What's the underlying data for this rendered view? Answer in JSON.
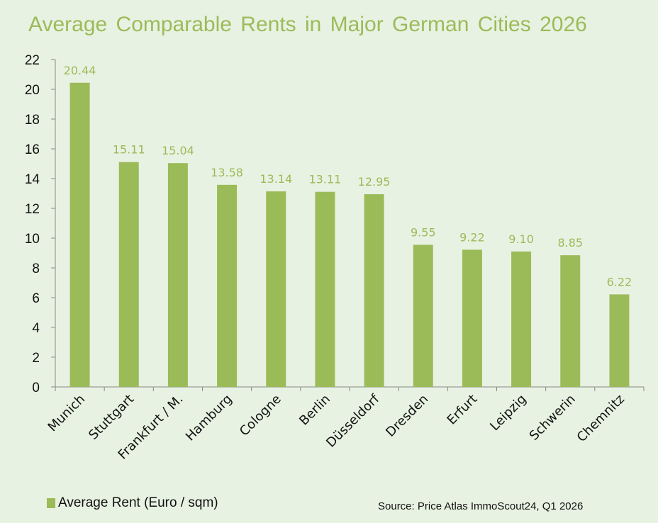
{
  "chart_data": {
    "type": "bar",
    "title": "Average Comparable Rents in Major German Cities 2026",
    "categories": [
      "Munich",
      "Stuttgart",
      "Frankfurt / M.",
      "Hamburg",
      "Cologne",
      "Berlin",
      "Düsseldorf",
      "Dresden",
      "Erfurt",
      "Leipzig",
      "Schwerin",
      "Chemnitz"
    ],
    "series": [
      {
        "name": "Average Rent (Euro / sqm)",
        "values": [
          20.44,
          15.11,
          15.04,
          13.58,
          13.14,
          13.11,
          12.95,
          9.55,
          9.22,
          9.1,
          8.85,
          6.22
        ]
      }
    ],
    "data_labels": [
      "20.44",
      "15.11",
      "15.04",
      "13.58",
      "13.14",
      "13.11",
      "12.95",
      "9.55",
      "9.22",
      "9.10",
      "8.85",
      "6.22"
    ],
    "ylim": [
      0,
      22
    ],
    "yticks": [
      0,
      2,
      4,
      6,
      8,
      10,
      12,
      14,
      16,
      18,
      20,
      22
    ],
    "xlabel": "",
    "ylabel": "",
    "grid": false,
    "legend": "bottom-left",
    "source": "Source: Price Atlas ImmoScout24,  Q1 2026",
    "colors": {
      "bar": "#9bbb59",
      "label": "#9bbb59",
      "title": "#9bbb59",
      "background": "#e8f2e2"
    }
  }
}
